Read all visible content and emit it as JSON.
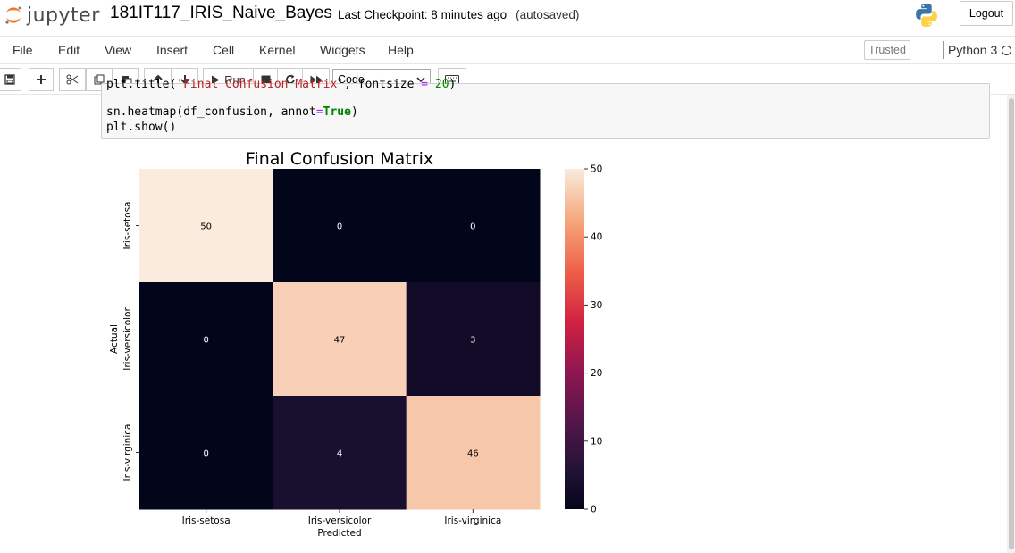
{
  "header": {
    "logo_text": "jupyter",
    "notebook_name": "181IT117_IRIS_Naive_Bayes",
    "checkpoint": "Last Checkpoint: 8 minutes ago",
    "autosaved": "(autosaved)",
    "logout_label": "Logout"
  },
  "menubar": {
    "items": [
      "File",
      "Edit",
      "View",
      "Insert",
      "Cell",
      "Kernel",
      "Widgets",
      "Help"
    ],
    "trusted_label": "Trusted",
    "kernel_name": "Python 3"
  },
  "toolbar": {
    "run_label": "Run",
    "cell_type": "Code"
  },
  "code": {
    "line1_a": "plt.title(",
    "line1_str": "'Final Confusion Matrix'",
    "line1_b": ", fontsize ",
    "line1_op": "=",
    "line1_num": " 20",
    "line1_c": ")",
    "line2_a": "sn.heatmap(df_confusion, annot",
    "line2_op": "=",
    "line2_kw": "True",
    "line2_c": ")",
    "line3": "plt.show()"
  },
  "chart_data": {
    "type": "heatmap",
    "title": "Final Confusion Matrix",
    "xlabel": "Predicted",
    "ylabel": "Actual",
    "x_categories": [
      "Iris-setosa",
      "Iris-versicolor",
      "Iris-virginica"
    ],
    "y_categories": [
      "Iris-setosa",
      "Iris-versicolor",
      "Iris-virginica"
    ],
    "values": [
      [
        50,
        0,
        0
      ],
      [
        0,
        47,
        3
      ],
      [
        0,
        4,
        46
      ]
    ],
    "colorbar": {
      "ticks": [
        0,
        10,
        20,
        30,
        40,
        50
      ],
      "range": [
        0,
        50
      ]
    },
    "colormap": "rocket",
    "colors": {
      "min": "#03051a",
      "max": "#faebdd"
    }
  }
}
